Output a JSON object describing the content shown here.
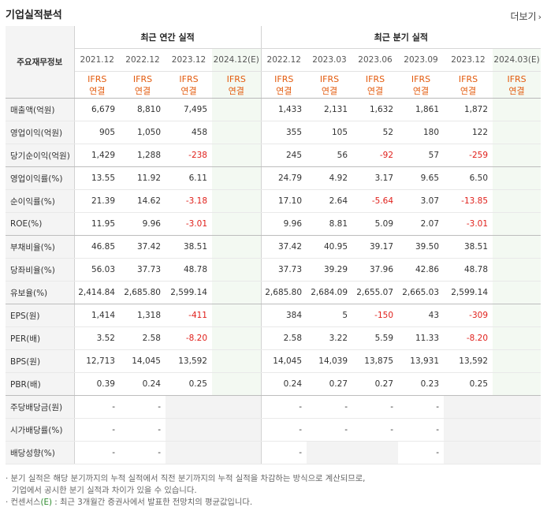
{
  "header": {
    "title": "기업실적분석",
    "more_label": "더보기"
  },
  "table": {
    "row_header_label": "주요재무정보",
    "groups": [
      {
        "label": "최근 연간 실적"
      },
      {
        "label": "최근 분기 실적"
      }
    ],
    "periods": [
      "2021.12",
      "2022.12",
      "2023.12",
      "2024.12(E)",
      "2022.12",
      "2023.03",
      "2023.06",
      "2023.09",
      "2023.12",
      "2024.03(E)"
    ],
    "ifrs_top": [
      "IFRS",
      "IFRS",
      "IFRS",
      "IFRS",
      "IFRS",
      "IFRS",
      "IFRS",
      "IFRS",
      "IFRS",
      "IFRS"
    ],
    "ifrs_bottom": [
      "연결",
      "연결",
      "연결",
      "연결",
      "연결",
      "연결",
      "연결",
      "연결",
      "연결",
      "연결"
    ],
    "rows": [
      {
        "label": "매출액(억원)",
        "values": [
          "6,679",
          "8,810",
          "7,495",
          "",
          "1,433",
          "2,131",
          "1,632",
          "1,861",
          "1,872",
          ""
        ]
      },
      {
        "label": "영업이익(억원)",
        "values": [
          "905",
          "1,050",
          "458",
          "",
          "355",
          "105",
          "52",
          "180",
          "122",
          ""
        ]
      },
      {
        "label": "당기순이익(억원)",
        "values": [
          "1,429",
          "1,288",
          "-238",
          "",
          "245",
          "56",
          "-92",
          "57",
          "-259",
          ""
        ]
      },
      {
        "label": "영업이익률(%)",
        "values": [
          "13.55",
          "11.92",
          "6.11",
          "",
          "24.79",
          "4.92",
          "3.17",
          "9.65",
          "6.50",
          ""
        ]
      },
      {
        "label": "순이익률(%)",
        "values": [
          "21.39",
          "14.62",
          "-3.18",
          "",
          "17.10",
          "2.64",
          "-5.64",
          "3.07",
          "-13.85",
          ""
        ]
      },
      {
        "label": "ROE(%)",
        "values": [
          "11.95",
          "9.96",
          "-3.01",
          "",
          "9.96",
          "8.81",
          "5.09",
          "2.07",
          "-3.01",
          ""
        ]
      },
      {
        "label": "부채비율(%)",
        "values": [
          "46.85",
          "37.42",
          "38.51",
          "",
          "37.42",
          "40.95",
          "39.17",
          "39.50",
          "38.51",
          ""
        ]
      },
      {
        "label": "당좌비율(%)",
        "values": [
          "56.03",
          "37.73",
          "48.78",
          "",
          "37.73",
          "39.29",
          "37.96",
          "42.86",
          "48.78",
          ""
        ]
      },
      {
        "label": "유보율(%)",
        "values": [
          "2,414.84",
          "2,685.80",
          "2,599.14",
          "",
          "2,685.80",
          "2,684.09",
          "2,655.07",
          "2,665.03",
          "2,599.14",
          ""
        ]
      },
      {
        "label": "EPS(원)",
        "values": [
          "1,414",
          "1,318",
          "-411",
          "",
          "384",
          "5",
          "-150",
          "43",
          "-309",
          ""
        ]
      },
      {
        "label": "PER(배)",
        "values": [
          "3.52",
          "2.58",
          "-8.20",
          "",
          "2.58",
          "3.22",
          "5.59",
          "11.33",
          "-8.20",
          ""
        ]
      },
      {
        "label": "BPS(원)",
        "values": [
          "12,713",
          "14,045",
          "13,592",
          "",
          "14,045",
          "14,039",
          "13,875",
          "13,931",
          "13,592",
          ""
        ]
      },
      {
        "label": "PBR(배)",
        "values": [
          "0.39",
          "0.24",
          "0.25",
          "",
          "0.24",
          "0.27",
          "0.27",
          "0.23",
          "0.25",
          ""
        ]
      },
      {
        "label": "주당배당금(원)",
        "values": [
          "-",
          "-",
          "",
          "",
          "-",
          "-",
          "-",
          "-",
          "",
          ""
        ]
      },
      {
        "label": "시가배당률(%)",
        "values": [
          "-",
          "-",
          "",
          "",
          "-",
          "-",
          "-",
          "-",
          "",
          ""
        ]
      },
      {
        "label": "배당성향(%)",
        "values": [
          "-",
          "-",
          "",
          "",
          "-",
          "",
          "",
          "-",
          "",
          ""
        ]
      }
    ]
  },
  "notes": {
    "line1": "· 분기 실적은 해당 분기까지의 누적 실적에서 직전 분기까지의 누적 실적을 차감하는 방식으로 계산되므로,",
    "line2": "기업에서 공시한 분기 실적과 차이가 있을 수 있습니다.",
    "line3_prefix": "· 컨센서스",
    "line3_e": "(E)",
    "line3_suffix": " : 최근 3개월간 증권사에서 발표한 전망치의 평균값입니다."
  },
  "colors": {
    "negative": "#e0201b",
    "ifrs": "#e35b0e",
    "estimate_bg": "#f3f9f2",
    "label_bg": "#f4f4f4"
  }
}
